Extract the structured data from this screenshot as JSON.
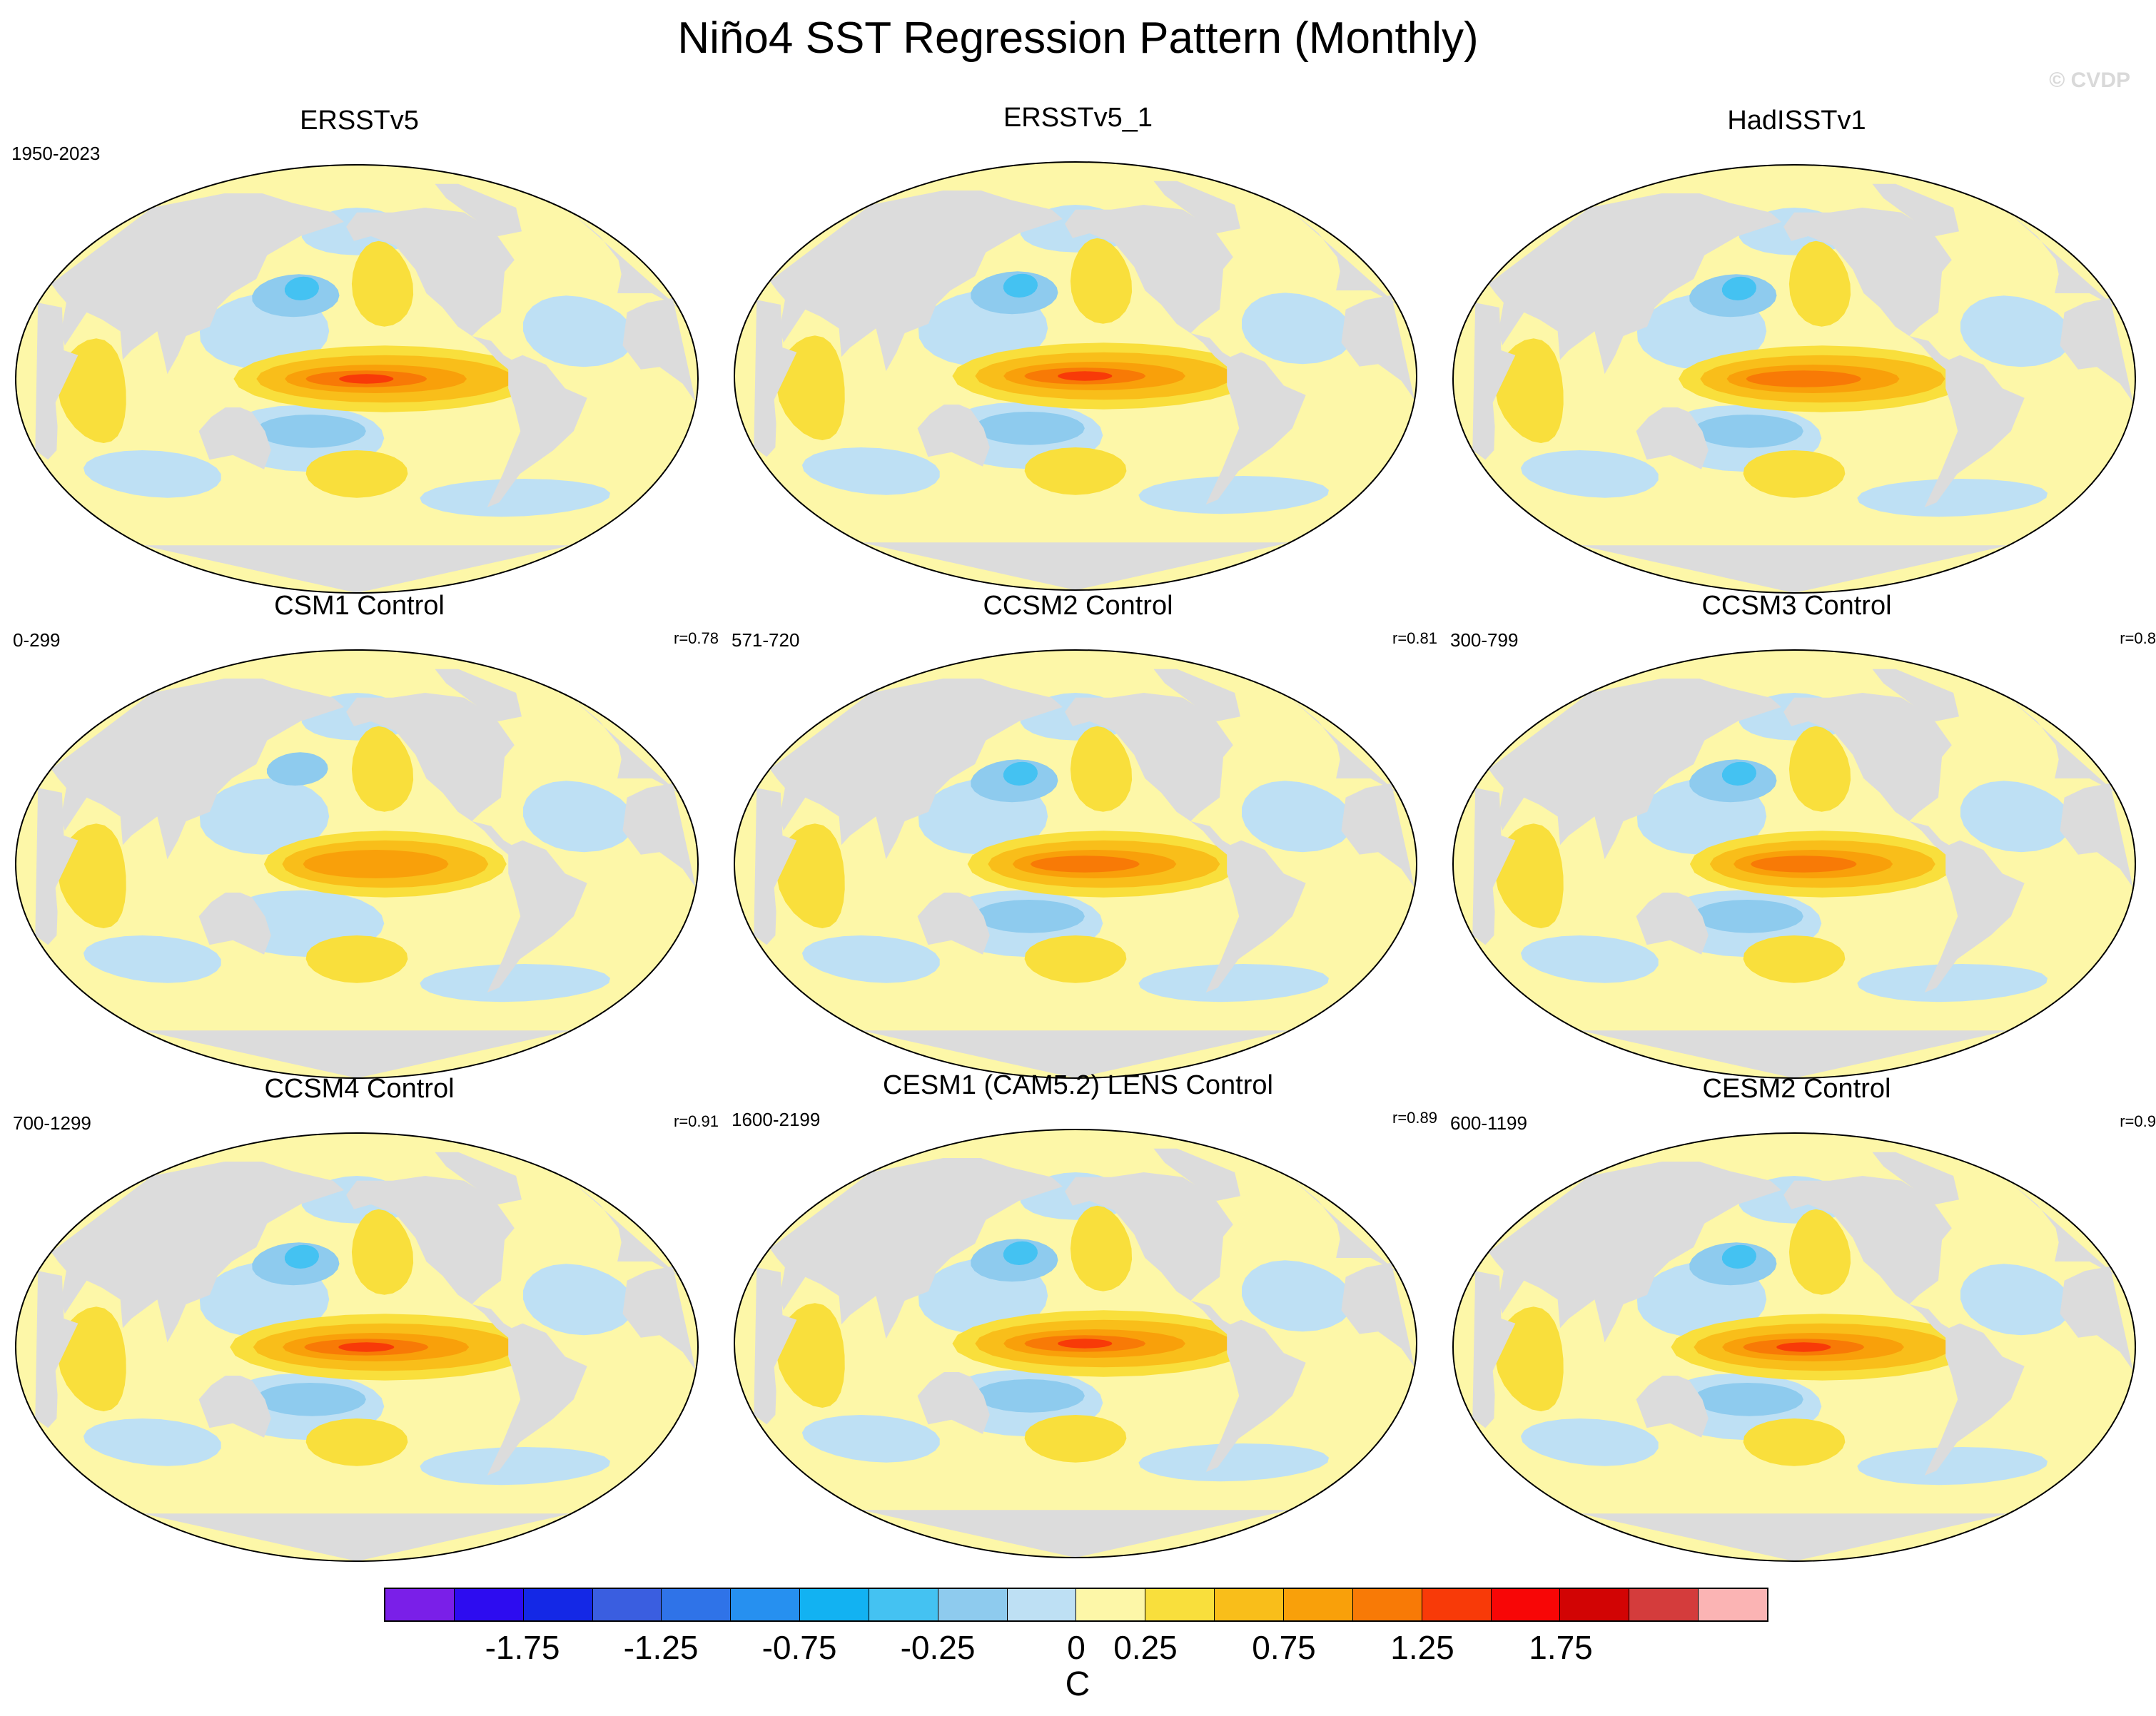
{
  "title": "Niño4 SST Regression Pattern (Monthly)",
  "watermark": "© CVDP",
  "panels": [
    {
      "title": "ERSSTv5",
      "period": "1950-2023",
      "corr": ""
    },
    {
      "title": "ERSSTv5_1",
      "period": "",
      "corr": ""
    },
    {
      "title": "HadISSTv1",
      "period": "",
      "corr": ""
    },
    {
      "title": "CSM1 Control",
      "period": "0-299",
      "corr": "r=0.78"
    },
    {
      "title": "CCSM2 Control",
      "period": "571-720",
      "corr": "r=0.81"
    },
    {
      "title": "CCSM3 Control",
      "period": "300-799",
      "corr": "r=0.8"
    },
    {
      "title": "CCSM4 Control",
      "period": "700-1299",
      "corr": "r=0.91"
    },
    {
      "title": "CESM1 (CAM5.2) LENS Control",
      "period": "1600-2199",
      "corr": "r=0.89"
    },
    {
      "title": "CESM2 Control",
      "period": "600-1199",
      "corr": "r=0.9"
    }
  ],
  "colorbar": {
    "units": "C",
    "tick_labels": [
      "-1.75",
      "-1.25",
      "-0.75",
      "-0.25",
      "0",
      "0.25",
      "0.75",
      "1.25",
      "1.75"
    ],
    "colors": [
      "#7a1fe8",
      "#2d0cf0",
      "#1428e6",
      "#3a5ee0",
      "#2f73e8",
      "#2690f0",
      "#12b2f2",
      "#44c2f2",
      "#8ecbee",
      "#bee0f4",
      "#fdf7a8",
      "#f9df3c",
      "#f9be1a",
      "#f9a00a",
      "#f87a06",
      "#f83a08",
      "#f80606",
      "#d20404",
      "#d43c3c",
      "#fbb4b4"
    ]
  },
  "map_colors": {
    "land": "#dcdcdc",
    "ocean_neg_weak": "#bee0f4",
    "ocean_neg_mid": "#8ecbee",
    "ocean_neg_strong": "#44c2f2",
    "ocean_pos_weak": "#fdf7a8",
    "ocean_pos_mid": "#f9df3c",
    "ocean_pos_strong": "#f9be1a",
    "ocean_pos_stronger": "#f9a00a",
    "ocean_pos_max": "#f87a06",
    "ocean_pos_peak": "#f83a08"
  }
}
